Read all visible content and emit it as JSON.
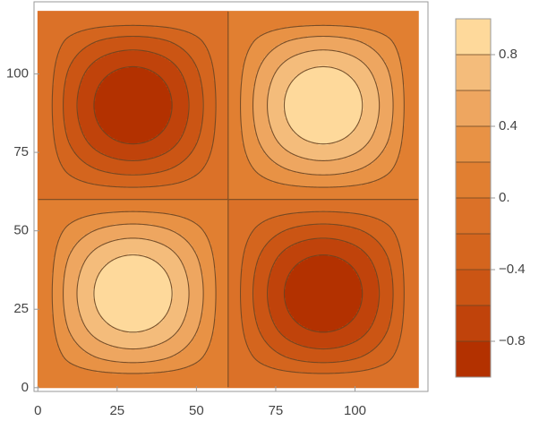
{
  "chart_data": {
    "type": "contour",
    "x": [
      0,
      10,
      20,
      30,
      40,
      50,
      60,
      70,
      80,
      90,
      100,
      110,
      120
    ],
    "y": [
      0,
      10,
      20,
      30,
      40,
      50,
      60,
      70,
      80,
      90,
      100,
      110,
      120
    ],
    "z": [
      [
        0,
        0,
        0,
        0,
        0,
        0,
        0,
        0,
        0,
        0,
        0,
        0,
        0
      ],
      [
        0,
        0.25,
        0.433,
        0.5,
        0.433,
        0.25,
        0,
        -0.25,
        -0.433,
        -0.5,
        -0.433,
        -0.25,
        0
      ],
      [
        0,
        0.433,
        0.75,
        0.866,
        0.75,
        0.433,
        0,
        -0.433,
        -0.75,
        -0.866,
        -0.75,
        -0.433,
        0
      ],
      [
        0,
        0.5,
        0.866,
        1,
        0.866,
        0.5,
        0,
        -0.5,
        -0.866,
        -1,
        -0.866,
        -0.5,
        0
      ],
      [
        0,
        0.433,
        0.75,
        0.866,
        0.75,
        0.433,
        0,
        -0.433,
        -0.75,
        -0.866,
        -0.75,
        -0.433,
        0
      ],
      [
        0,
        0.25,
        0.433,
        0.5,
        0.433,
        0.25,
        0,
        -0.25,
        -0.433,
        -0.5,
        -0.433,
        -0.25,
        0
      ],
      [
        0,
        0,
        0,
        0,
        0,
        0,
        0,
        0,
        0,
        0,
        0,
        0,
        0
      ],
      [
        0,
        -0.25,
        -0.433,
        -0.5,
        -0.433,
        -0.25,
        0,
        0.25,
        0.433,
        0.5,
        0.433,
        0.25,
        0
      ],
      [
        0,
        -0.433,
        -0.75,
        -0.866,
        -0.75,
        -0.433,
        0,
        0.433,
        0.75,
        0.866,
        0.75,
        0.433,
        0
      ],
      [
        0,
        -0.5,
        -0.866,
        -1,
        -0.866,
        -0.5,
        0,
        0.5,
        0.866,
        1,
        0.866,
        0.5,
        0
      ],
      [
        0,
        -0.433,
        -0.75,
        -0.866,
        -0.75,
        -0.433,
        0,
        0.433,
        0.75,
        0.866,
        0.75,
        0.433,
        0
      ],
      [
        0,
        -0.25,
        -0.433,
        -0.5,
        -0.433,
        -0.25,
        0,
        0.25,
        0.433,
        0.5,
        0.433,
        0.25,
        0
      ],
      [
        0,
        0,
        0,
        0,
        0,
        0,
        0,
        0,
        0,
        0,
        0,
        0,
        0
      ]
    ],
    "xlim": [
      -1.2,
      123
    ],
    "ylim": [
      -1.2,
      123
    ],
    "xticks": [
      0,
      25,
      50,
      75,
      100
    ],
    "yticks": [
      0,
      25,
      50,
      75,
      100
    ],
    "levels": [
      -1,
      -0.8,
      -0.6,
      -0.4,
      -0.2,
      0,
      0.2,
      0.4,
      0.6,
      0.8,
      1
    ],
    "band_colors": [
      "#b33100",
      "#c0430b",
      "#cb5514",
      "#d4651e",
      "#db7128",
      "#e17f31",
      "#e89245",
      "#eea660",
      "#f4bc7b",
      "#fed99b"
    ],
    "line_color": "#6b4522",
    "colorbar_ticks": [
      {
        "value": -0.8,
        "label": "−0.8"
      },
      {
        "value": -0.4,
        "label": "−0.4"
      },
      {
        "value": 0,
        "label": "0."
      },
      0.4,
      0.8
    ]
  }
}
